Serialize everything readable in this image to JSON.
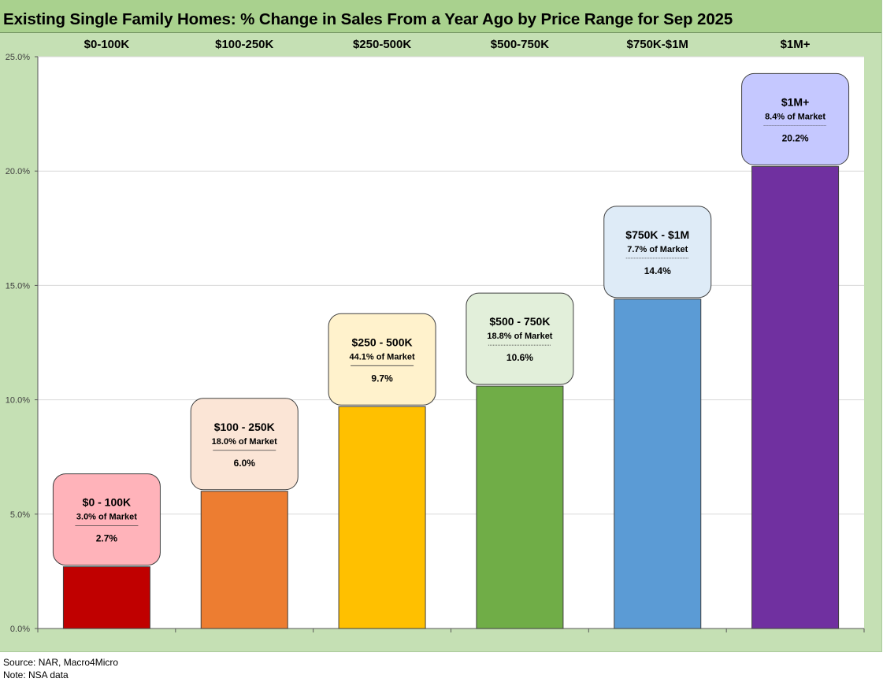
{
  "title": "Existing Single Family Homes: % Change in Sales From a Year Ago by Price Range for Sep 2025",
  "chart_data": {
    "type": "bar",
    "categories": [
      "$0-100K",
      "$100-250K",
      "$250-500K",
      "$500-750K",
      "$750K-$1M",
      "$1M+"
    ],
    "values": [
      2.7,
      6.0,
      9.7,
      10.6,
      14.4,
      20.2
    ],
    "ylim": [
      0,
      25
    ],
    "yticks": [
      0,
      5,
      10,
      15,
      20,
      25
    ],
    "ytick_labels": [
      "0.0%",
      "5.0%",
      "10.0%",
      "15.0%",
      "20.0%",
      "25.0%"
    ],
    "grid": true,
    "bar_colors": [
      "#c00000",
      "#ed7d31",
      "#ffc000",
      "#70ad47",
      "#5b9bd5",
      "#7030a0"
    ],
    "annotations": [
      {
        "title": "$0 - 100K",
        "share": "3.0% of Market",
        "value": "2.7%",
        "fill": "#ffb3ba"
      },
      {
        "title": "$100 - 250K",
        "share": "18.0% of Market",
        "value": "6.0%",
        "fill": "#fbe5d6"
      },
      {
        "title": "$250 - 500K",
        "share": "44.1% of Market",
        "value": "9.7%",
        "fill": "#fff2cc"
      },
      {
        "title": "$500 - 750K",
        "share": "18.8% of Market",
        "value": "10.6%",
        "fill": "#e2efda"
      },
      {
        "title": "$750K - $1M",
        "share": "7.7% of Market",
        "value": "14.4%",
        "fill": "#deebf7"
      },
      {
        "title": "$1M+",
        "share": "8.4% of Market",
        "value": "20.2%",
        "fill": "#c5c8ff"
      }
    ]
  },
  "footer": {
    "source": "Source: NAR, Macro4Micro",
    "note": "Note: NSA data"
  }
}
